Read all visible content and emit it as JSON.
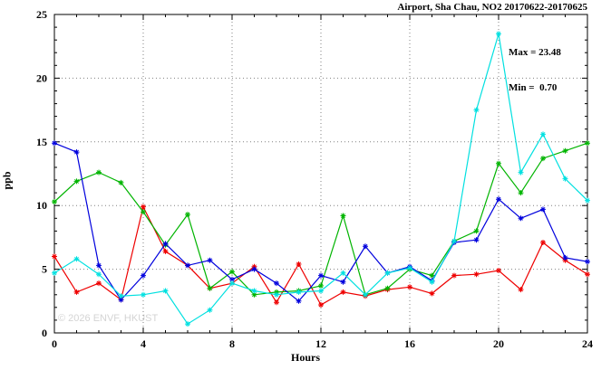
{
  "title": "Airport, Sha Chau, NO2 20170622-20170625",
  "annotation": {
    "max_label": "Max = 23.48",
    "min_label": "Min =  0.70"
  },
  "watermark": "© 2026 ENVF, HKUST",
  "chart_data": {
    "type": "line",
    "title": "Airport, Sha Chau, NO2 20170622-20170625",
    "xlabel": "Hours",
    "ylabel": "ppb",
    "xlim": [
      0,
      24
    ],
    "ylim": [
      0,
      25
    ],
    "xticks": [
      0,
      4,
      8,
      12,
      16,
      20,
      24
    ],
    "yticks": [
      0,
      5,
      10,
      15,
      20,
      25
    ],
    "grid": true,
    "legend_position": "none",
    "marker": "asterisk",
    "max_value": 23.48,
    "min_value": 0.7,
    "x": [
      0,
      1,
      2,
      3,
      4,
      5,
      6,
      7,
      8,
      9,
      10,
      11,
      12,
      13,
      14,
      15,
      16,
      17,
      18,
      19,
      20,
      21,
      22,
      23,
      24
    ],
    "series": [
      {
        "name": "red",
        "color": "#ee0000",
        "values": [
          6.0,
          3.2,
          3.9,
          2.6,
          9.9,
          6.4,
          5.3,
          3.5,
          3.9,
          5.2,
          2.4,
          5.4,
          2.2,
          3.2,
          2.9,
          3.4,
          3.6,
          3.1,
          4.5,
          4.6,
          4.9,
          3.4,
          7.1,
          5.7,
          4.6
        ]
      },
      {
        "name": "green",
        "color": "#00b400",
        "values": [
          10.3,
          11.9,
          12.6,
          11.8,
          9.5,
          6.9,
          9.3,
          3.5,
          4.8,
          3.0,
          3.2,
          3.3,
          3.7,
          9.2,
          3.0,
          3.5,
          5.0,
          4.5,
          7.2,
          8.0,
          13.3,
          11.0,
          13.7,
          14.3,
          14.9
        ]
      },
      {
        "name": "blue",
        "color": "#0000dd",
        "values": [
          14.9,
          14.2,
          5.3,
          2.6,
          4.5,
          7.0,
          5.3,
          5.7,
          4.2,
          5.0,
          3.9,
          2.5,
          4.5,
          4.0,
          6.8,
          4.7,
          5.2,
          4.1,
          7.1,
          7.3,
          10.5,
          9.0,
          9.7,
          5.9,
          5.6
        ]
      },
      {
        "name": "cyan",
        "color": "#00e0e0",
        "values": [
          4.7,
          5.8,
          4.6,
          2.9,
          3.0,
          3.3,
          0.7,
          1.8,
          3.9,
          3.3,
          3.0,
          3.2,
          3.3,
          4.7,
          3.0,
          4.7,
          5.1,
          4.0,
          7.2,
          17.5,
          23.48,
          12.6,
          15.6,
          12.1,
          10.4
        ]
      }
    ]
  }
}
